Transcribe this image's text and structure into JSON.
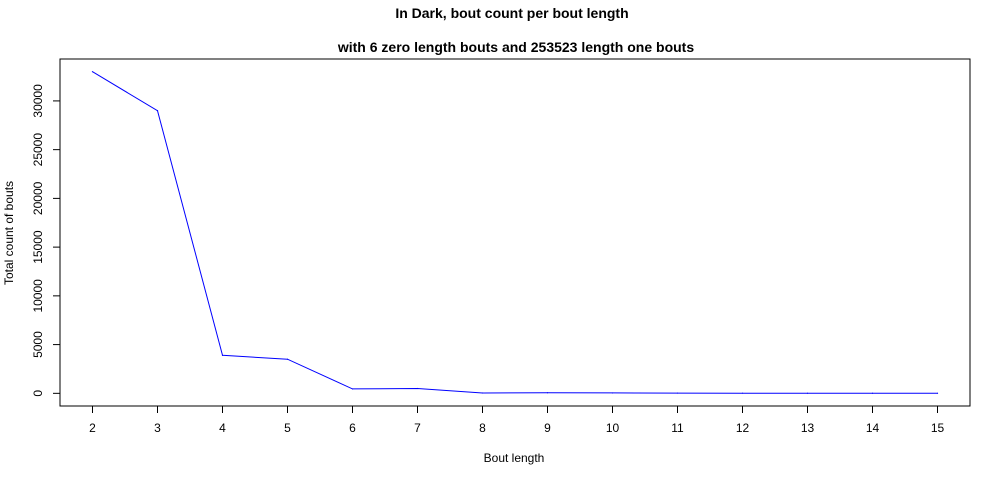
{
  "chart_data": {
    "type": "line",
    "title": "In Dark, bout count per bout length",
    "subtitle": "with 6 zero length bouts and 253523 length one bouts",
    "xlabel": "Bout length",
    "ylabel": "Total count of bouts",
    "x": [
      2,
      3,
      4,
      5,
      6,
      7,
      8,
      9,
      10,
      11,
      12,
      13,
      14,
      15
    ],
    "series": [
      {
        "values": [
          33000,
          29000,
          3900,
          3500,
          450,
          500,
          30,
          60,
          40,
          25,
          15,
          10,
          8,
          5
        ],
        "color": "#0000ff"
      }
    ],
    "xticks": [
      "2",
      "3",
      "4",
      "5",
      "6",
      "7",
      "8",
      "9",
      "10",
      "11",
      "12",
      "13",
      "14",
      "15"
    ],
    "yticks": [
      "0",
      "5000",
      "10000",
      "15000",
      "20000",
      "25000",
      "30000"
    ],
    "xlim": [
      1.5,
      15.5
    ],
    "ylim": [
      -1300,
      34300
    ],
    "grid": false,
    "legend": false
  }
}
